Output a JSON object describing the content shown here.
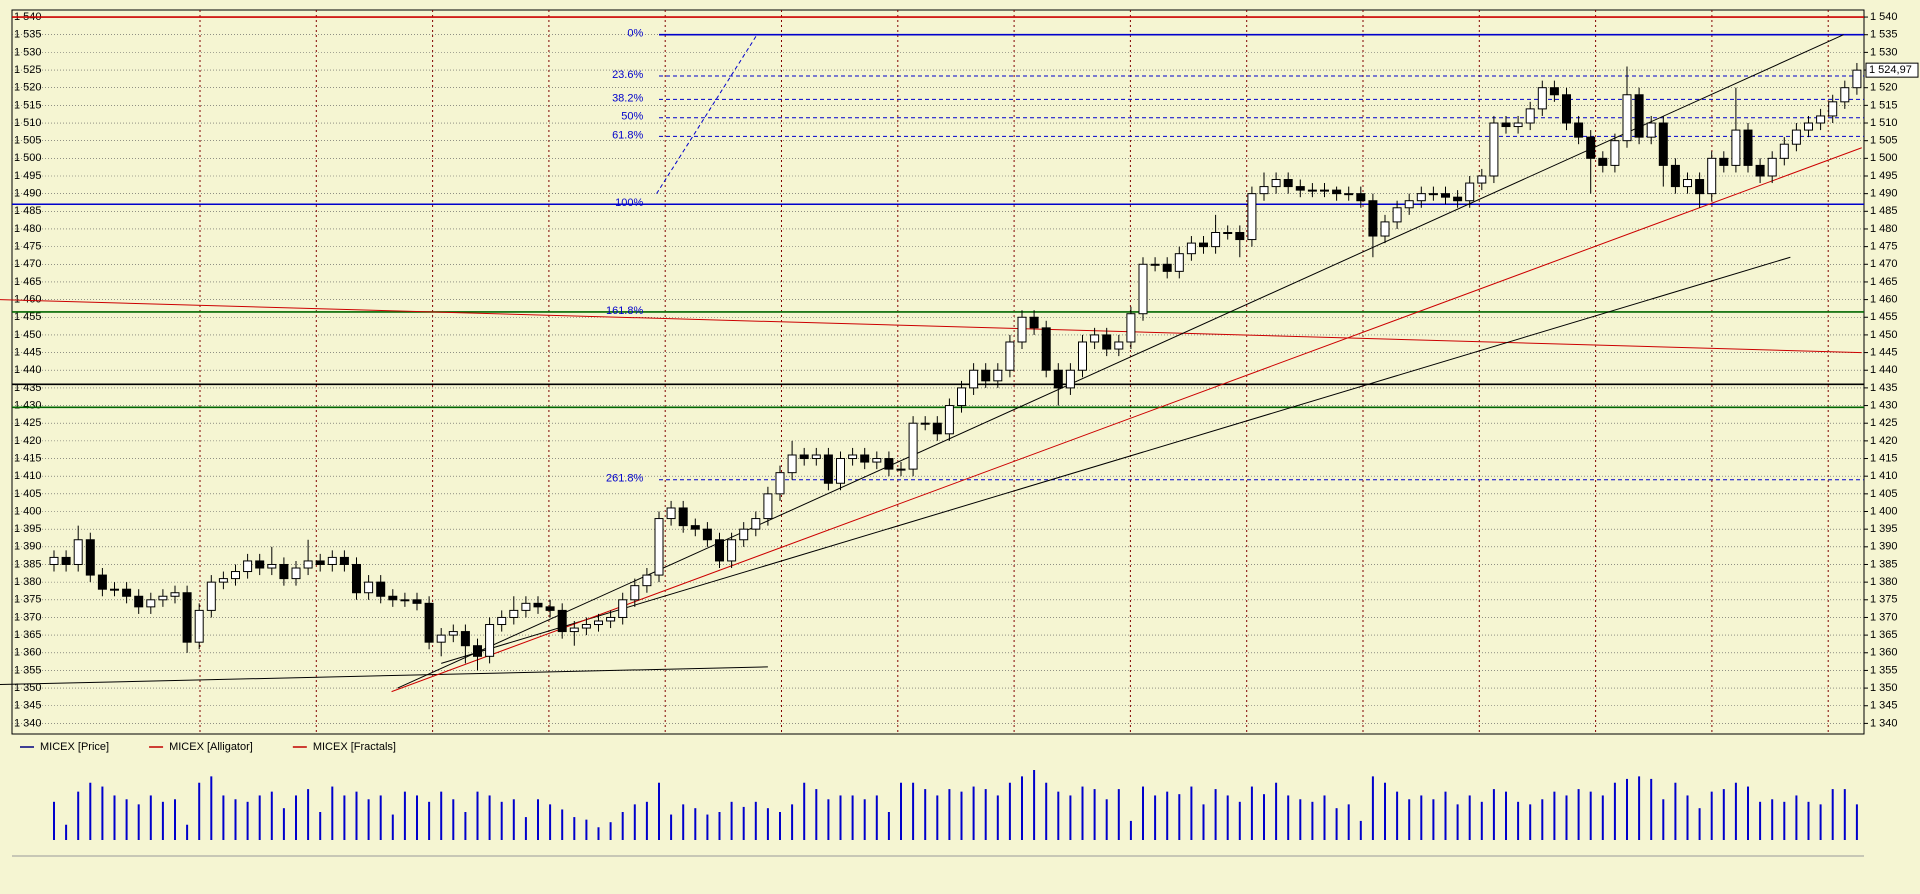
{
  "chart_data": {
    "type": "candlestick",
    "legend": [
      {
        "name": "MICEX [Price]",
        "color": "#000080"
      },
      {
        "name": "MICEX [Alligator]",
        "color": "#c00000"
      },
      {
        "name": "MICEX [Fractals]",
        "color": "#c00000"
      }
    ],
    "open": [
      1385,
      1387,
      1385,
      1392,
      1382,
      1378,
      1378,
      1376,
      1373,
      1375,
      1376,
      1377,
      1363,
      1372,
      1380,
      1381,
      1383,
      1386,
      1384,
      1385,
      1381,
      1384,
      1386,
      1385,
      1387,
      1385,
      1377,
      1380,
      1376,
      1375,
      1375,
      1374,
      1363,
      1365,
      1366,
      1362,
      1359,
      1368,
      1370,
      1372,
      1374,
      1373,
      1372,
      1366,
      1367,
      1368,
      1369,
      1370,
      1375,
      1379,
      1382,
      1398,
      1401,
      1396,
      1395,
      1392,
      1386,
      1392,
      1395,
      1398,
      1405,
      1411,
      1416,
      1415,
      1416,
      1408,
      1415,
      1416,
      1414,
      1415,
      1412,
      1412,
      1425,
      1425,
      1422,
      1430,
      1435,
      1440,
      1437,
      1440,
      1448,
      1455,
      1452,
      1440,
      1435,
      1440,
      1448,
      1450,
      1446,
      1448,
      1456,
      1470,
      1470,
      1468,
      1473,
      1476,
      1475,
      1479,
      1479,
      1477,
      1490,
      1492,
      1494,
      1492,
      1491,
      1491,
      1491,
      1490,
      1490,
      1488,
      1478,
      1482,
      1486,
      1488,
      1490,
      1490,
      1489,
      1488,
      1493,
      1495,
      1510,
      1509,
      1510,
      1514,
      1520,
      1518,
      1510,
      1506,
      1500,
      1498,
      1505,
      1518,
      1506,
      1510,
      1498,
      1492,
      1494,
      1490,
      1500,
      1498,
      1508,
      1498,
      1495,
      1500,
      1504,
      1508,
      1510,
      1512,
      1516,
      1520
    ],
    "high": [
      1389,
      1389,
      1396,
      1394,
      1384,
      1380,
      1380,
      1378,
      1377,
      1378,
      1379,
      1379,
      1374,
      1382,
      1383,
      1385,
      1388,
      1388,
      1390,
      1387,
      1386,
      1392,
      1388,
      1389,
      1389,
      1387,
      1382,
      1382,
      1378,
      1377,
      1377,
      1376,
      1367,
      1368,
      1368,
      1364,
      1370,
      1372,
      1376,
      1376,
      1376,
      1375,
      1374,
      1369,
      1370,
      1371,
      1372,
      1377,
      1381,
      1384,
      1400,
      1403,
      1403,
      1398,
      1397,
      1394,
      1394,
      1397,
      1400,
      1407,
      1413,
      1420,
      1418,
      1418,
      1418,
      1417,
      1418,
      1418,
      1417,
      1417,
      1414,
      1427,
      1427,
      1427,
      1432,
      1437,
      1442,
      1442,
      1442,
      1450,
      1457,
      1457,
      1454,
      1442,
      1442,
      1450,
      1452,
      1452,
      1450,
      1458,
      1472,
      1472,
      1472,
      1475,
      1478,
      1478,
      1484,
      1481,
      1481,
      1492,
      1496,
      1496,
      1496,
      1494,
      1493,
      1493,
      1492,
      1492,
      1492,
      1490,
      1484,
      1488,
      1490,
      1492,
      1492,
      1492,
      1491,
      1495,
      1497,
      1512,
      1512,
      1512,
      1516,
      1522,
      1522,
      1520,
      1512,
      1508,
      1502,
      1507,
      1526,
      1520,
      1512,
      1512,
      1500,
      1496,
      1496,
      1502,
      1502,
      1520,
      1510,
      1500,
      1502,
      1506,
      1510,
      1512,
      1514,
      1518,
      1522,
      1527
    ],
    "low": [
      1383,
      1383,
      1383,
      1380,
      1376,
      1376,
      1374,
      1371,
      1371,
      1373,
      1374,
      1360,
      1361,
      1370,
      1378,
      1379,
      1381,
      1382,
      1382,
      1379,
      1379,
      1382,
      1383,
      1383,
      1383,
      1375,
      1375,
      1374,
      1373,
      1373,
      1372,
      1361,
      1359,
      1363,
      1357,
      1355,
      1357,
      1366,
      1368,
      1370,
      1371,
      1370,
      1364,
      1362,
      1365,
      1366,
      1367,
      1368,
      1373,
      1377,
      1380,
      1396,
      1394,
      1393,
      1390,
      1384,
      1384,
      1390,
      1393,
      1396,
      1403,
      1409,
      1413,
      1413,
      1406,
      1406,
      1413,
      1412,
      1412,
      1410,
      1410,
      1410,
      1423,
      1420,
      1420,
      1428,
      1433,
      1435,
      1435,
      1438,
      1446,
      1450,
      1438,
      1430,
      1433,
      1438,
      1446,
      1444,
      1444,
      1446,
      1454,
      1468,
      1466,
      1466,
      1471,
      1473,
      1473,
      1477,
      1472,
      1475,
      1488,
      1490,
      1490,
      1489,
      1489,
      1489,
      1488,
      1488,
      1486,
      1472,
      1476,
      1480,
      1484,
      1486,
      1488,
      1487,
      1486,
      1486,
      1491,
      1493,
      1507,
      1507,
      1508,
      1512,
      1516,
      1508,
      1504,
      1490,
      1496,
      1496,
      1503,
      1504,
      1504,
      1492,
      1490,
      1490,
      1486,
      1488,
      1496,
      1496,
      1496,
      1493,
      1493,
      1498,
      1502,
      1506,
      1508,
      1510,
      1514,
      1518
    ],
    "close": [
      1387,
      1385,
      1392,
      1382,
      1378,
      1378,
      1376,
      1373,
      1375,
      1376,
      1377,
      1363,
      1372,
      1380,
      1381,
      1383,
      1386,
      1384,
      1385,
      1381,
      1384,
      1386,
      1385,
      1387,
      1385,
      1377,
      1380,
      1376,
      1375,
      1375,
      1374,
      1363,
      1365,
      1366,
      1362,
      1359,
      1368,
      1370,
      1372,
      1374,
      1373,
      1372,
      1366,
      1367,
      1368,
      1369,
      1370,
      1375,
      1379,
      1382,
      1398,
      1401,
      1396,
      1395,
      1392,
      1386,
      1392,
      1395,
      1398,
      1405,
      1411,
      1416,
      1415,
      1416,
      1408,
      1415,
      1416,
      1414,
      1415,
      1412,
      1412,
      1425,
      1425,
      1422,
      1430,
      1435,
      1440,
      1437,
      1440,
      1448,
      1455,
      1452,
      1440,
      1435,
      1440,
      1448,
      1450,
      1446,
      1448,
      1456,
      1470,
      1470,
      1468,
      1473,
      1476,
      1475,
      1479,
      1479,
      1477,
      1490,
      1492,
      1494,
      1492,
      1491,
      1491,
      1491,
      1490,
      1490,
      1488,
      1478,
      1482,
      1486,
      1488,
      1490,
      1490,
      1489,
      1488,
      1493,
      1495,
      1510,
      1509,
      1510,
      1514,
      1520,
      1518,
      1510,
      1506,
      1500,
      1498,
      1505,
      1518,
      1506,
      1510,
      1498,
      1492,
      1494,
      1490,
      1500,
      1498,
      1508,
      1498,
      1495,
      1500,
      1504,
      1508,
      1510,
      1512,
      1516,
      1520,
      1524.97
    ],
    "volume": [
      30,
      12,
      38,
      45,
      42,
      35,
      32,
      28,
      35,
      30,
      32,
      12,
      45,
      50,
      35,
      32,
      30,
      35,
      38,
      25,
      35,
      40,
      22,
      42,
      35,
      38,
      32,
      35,
      20,
      38,
      35,
      30,
      38,
      32,
      22,
      38,
      35,
      30,
      32,
      18,
      32,
      28,
      24,
      18,
      16,
      10,
      14,
      22,
      28,
      30,
      45,
      20,
      28,
      25,
      20,
      22,
      30,
      26,
      30,
      25,
      22,
      28,
      45,
      40,
      32,
      35,
      35,
      32,
      35,
      22,
      45,
      45,
      40,
      35,
      40,
      38,
      42,
      40,
      35,
      45,
      50,
      55,
      45,
      38,
      35,
      42,
      40,
      32,
      40,
      15,
      42,
      35,
      38,
      36,
      42,
      28,
      40,
      35,
      30,
      42,
      36,
      45,
      35,
      32,
      30,
      35,
      25,
      28,
      15,
      50,
      45,
      38,
      32,
      35,
      32,
      38,
      28,
      35,
      30,
      40,
      38,
      30,
      28,
      32,
      38,
      35,
      40,
      38,
      35,
      45,
      48,
      50,
      48,
      32,
      45,
      35,
      25,
      38,
      40,
      45,
      42,
      30,
      32,
      30,
      35,
      30,
      28,
      40,
      40,
      28
    ],
    "volume_color": "#0000cc",
    "last_price": {
      "value": 1524.97,
      "label": "1 524,97"
    },
    "ylim": [
      1337,
      1542
    ],
    "yticks": [
      {
        "value": 1340,
        "label": "1 340"
      },
      {
        "value": 1345,
        "label": "1 345"
      },
      {
        "value": 1350,
        "label": "1 350"
      },
      {
        "value": 1355,
        "label": "1 355"
      },
      {
        "value": 1360,
        "label": "1 360"
      },
      {
        "value": 1365,
        "label": "1 365"
      },
      {
        "value": 1370,
        "label": "1 370"
      },
      {
        "value": 1375,
        "label": "1 375"
      },
      {
        "value": 1380,
        "label": "1 380"
      },
      {
        "value": 1385,
        "label": "1 385"
      },
      {
        "value": 1390,
        "label": "1 390"
      },
      {
        "value": 1395,
        "label": "1 395"
      },
      {
        "value": 1400,
        "label": "1 400"
      },
      {
        "value": 1405,
        "label": "1 405"
      },
      {
        "value": 1410,
        "label": "1 410"
      },
      {
        "value": 1415,
        "label": "1 415"
      },
      {
        "value": 1420,
        "label": "1 420"
      },
      {
        "value": 1425,
        "label": "1 425"
      },
      {
        "value": 1430,
        "label": "1 430"
      },
      {
        "value": 1435,
        "label": "1 435"
      },
      {
        "value": 1440,
        "label": "1 440"
      },
      {
        "value": 1445,
        "label": "1 445"
      },
      {
        "value": 1450,
        "label": "1 450"
      },
      {
        "value": 1455,
        "label": "1 455"
      },
      {
        "value": 1460,
        "label": "1 460"
      },
      {
        "value": 1465,
        "label": "1 465"
      },
      {
        "value": 1470,
        "label": "1 470"
      },
      {
        "value": 1475,
        "label": "1 475"
      },
      {
        "value": 1480,
        "label": "1 480"
      },
      {
        "value": 1485,
        "label": "1 485"
      },
      {
        "value": 1490,
        "label": "1 490"
      },
      {
        "value": 1495,
        "label": "1 495"
      },
      {
        "value": 1500,
        "label": "1 500"
      },
      {
        "value": 1505,
        "label": "1 505"
      },
      {
        "value": 1510,
        "label": "1 510"
      },
      {
        "value": 1515,
        "label": "1 515"
      },
      {
        "value": 1520,
        "label": "1 520"
      },
      {
        "value": 1525,
        "label": "1 525"
      },
      {
        "value": 1530,
        "label": "1 530"
      },
      {
        "value": 1535,
        "label": "1 535"
      },
      {
        "value": 1540,
        "label": "1 540"
      }
    ],
    "levels": [
      {
        "value": 1540,
        "color": "#cc0000",
        "style": "solid"
      },
      {
        "value": 1535,
        "color": "#0000cc",
        "style": "solid",
        "from": 50,
        "label": "0%"
      },
      {
        "value": 1523.3,
        "color": "#0000cc",
        "style": "dash",
        "from": 50,
        "label": "23.6%"
      },
      {
        "value": 1516.7,
        "color": "#0000cc",
        "style": "dash",
        "from": 50,
        "label": "38.2%"
      },
      {
        "value": 1511.5,
        "color": "#0000cc",
        "style": "dash",
        "from": 50,
        "label": "50%"
      },
      {
        "value": 1506.2,
        "color": "#0000cc",
        "style": "dash",
        "from": 50,
        "label": "61.8%"
      },
      {
        "value": 1487,
        "color": "#0000cc",
        "style": "solid",
        "label": "100%"
      },
      {
        "value": 1456.5,
        "color": "#006600",
        "style": "solid",
        "label": "161.8%"
      },
      {
        "value": 1436,
        "color": "#000000",
        "style": "solid"
      },
      {
        "value": 1429.5,
        "color": "#006600",
        "style": "solid"
      },
      {
        "value": 1409,
        "color": "#0000cc",
        "style": "dash",
        "from": 50,
        "label": "261.8%"
      }
    ],
    "trendlines": [
      {
        "x": [
          -4.5,
          149.4
        ],
        "y": [
          1460,
          1445
        ],
        "color": "#cc0000"
      },
      {
        "x": [
          28.4,
          147.9
        ],
        "y": [
          1350,
          1535
        ],
        "color": "#000000"
      },
      {
        "x": [
          32,
          143.5
        ],
        "y": [
          1357,
          1472
        ],
        "color": "#000000"
      },
      {
        "x": [
          -4.5,
          59
        ],
        "y": [
          1351,
          1356
        ],
        "color": "#000000"
      },
      {
        "x": [
          27.9,
          149.4
        ],
        "y": [
          1349,
          1503
        ],
        "color": "#cc0000"
      },
      {
        "x": [
          49.8,
          58.1
        ],
        "y": [
          1490,
          1535
        ],
        "color": "#0000cc"
      }
    ]
  }
}
